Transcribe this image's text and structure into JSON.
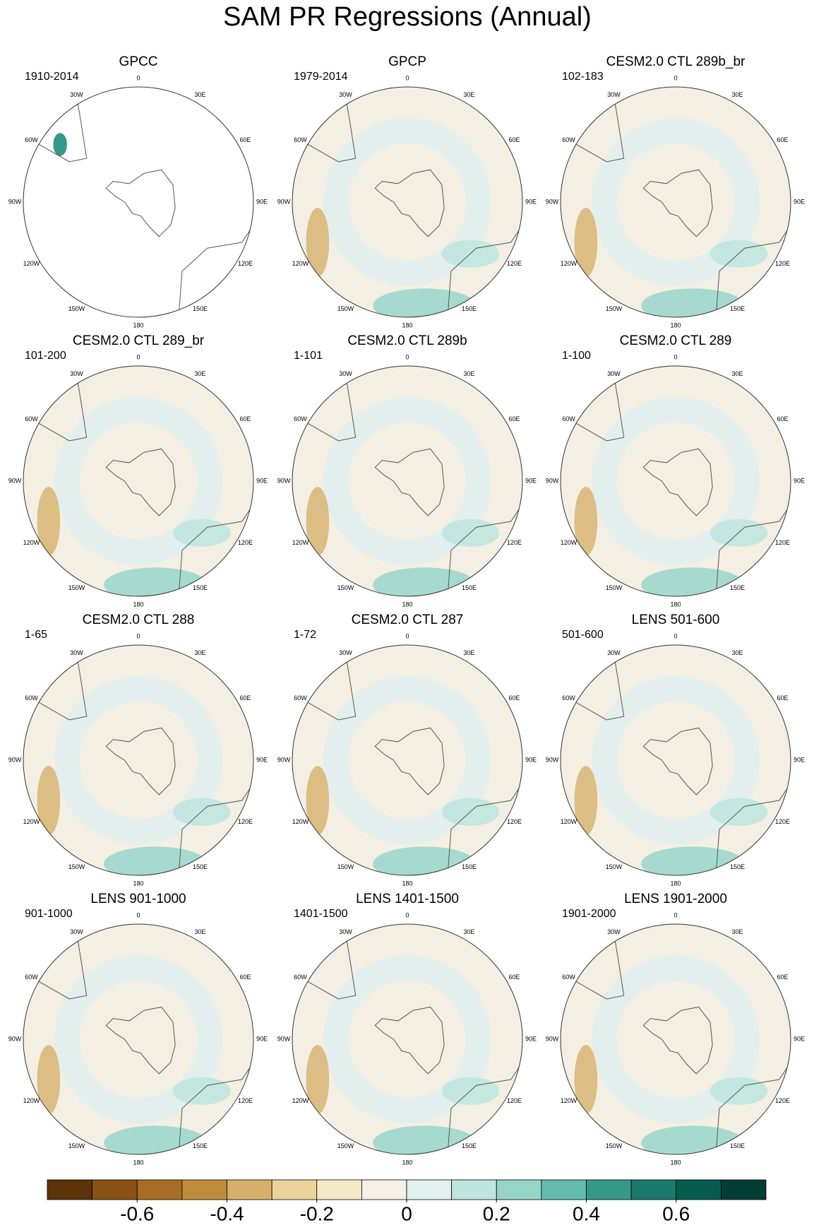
{
  "title": "SAM PR Regressions (Annual)",
  "panels": [
    {
      "title": "GPCC",
      "period": "1910-2014"
    },
    {
      "title": "GPCP",
      "period": "1979-2014"
    },
    {
      "title": "CESM2.0 CTL 289b_br",
      "period": "102-183"
    },
    {
      "title": "CESM2.0 CTL 289_br",
      "period": "101-200"
    },
    {
      "title": "CESM2.0 CTL 289b",
      "period": "1-101"
    },
    {
      "title": "CESM2.0 CTL 289",
      "period": "1-100"
    },
    {
      "title": "CESM2.0 CTL 288",
      "period": "1-65"
    },
    {
      "title": "CESM2.0 CTL 287",
      "period": "1-72"
    },
    {
      "title": "LENS 501-600",
      "period": "501-600"
    },
    {
      "title": "LENS 901-1000",
      "period": "901-1000"
    },
    {
      "title": "LENS 1401-1500",
      "period": "1401-1500"
    },
    {
      "title": "LENS 1901-2000",
      "period": "1901-2000"
    }
  ],
  "longitude_labels": [
    "0",
    "30E",
    "60E",
    "90E",
    "120E",
    "150E",
    "180",
    "150W",
    "120W",
    "90W",
    "60W",
    "30W"
  ],
  "colorbar": {
    "xlim": [
      -0.8,
      0.8
    ],
    "levels": [
      -0.8,
      -0.7,
      -0.6,
      -0.5,
      -0.4,
      -0.3,
      -0.2,
      -0.1,
      0,
      0.1,
      0.2,
      0.3,
      0.4,
      0.5,
      0.6,
      0.7,
      0.8
    ],
    "colors": [
      "#5c3209",
      "#8a5214",
      "#a96c26",
      "#c08a3b",
      "#d6b06b",
      "#ebd39c",
      "#f6e9c8",
      "#f5f1e6",
      "#e2f0ee",
      "#bfe6de",
      "#94d5c8",
      "#62bbac",
      "#35998a",
      "#197a6c",
      "#075c50",
      "#013e34"
    ],
    "ticks": [
      -0.6,
      -0.4,
      -0.2,
      0,
      0.2,
      0.4,
      0.6
    ]
  }
}
